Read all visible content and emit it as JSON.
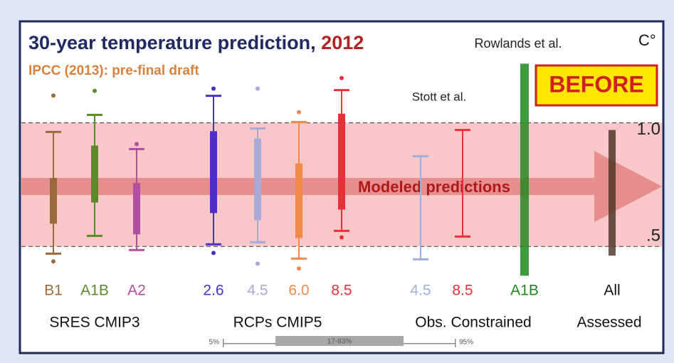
{
  "chart_data": {
    "type": "box",
    "title": "30-year temperature prediction,",
    "title_year": "2012",
    "subtitle": "IPCC (2013): pre-final draft",
    "unit": "C°",
    "badge": "BEFORE",
    "band_label": "Modeled predictions",
    "annotations": [
      "Rowlands et al.",
      "Stott et al."
    ],
    "ylim": [
      0.36,
      1.41
    ],
    "yticks": [
      {
        "value": 0.5,
        "label": ".5"
      },
      {
        "value": 1.0,
        "label": "1.0"
      }
    ],
    "grid": true,
    "categories": [
      "B1",
      "A1B",
      "A2",
      "2.6",
      "4.5",
      "6.0",
      "8.5",
      "4.5",
      "8.5",
      "A1B",
      "All"
    ],
    "groups": [
      "SRES CMIP3",
      "RCPs CMIP5",
      "Obs. Constrained",
      "Assessed"
    ],
    "boxes": [
      {
        "kind": "box",
        "color": "#9b6a3c",
        "low": 0.471,
        "q1": 0.592,
        "q3": 0.777,
        "high": 0.963,
        "outliers": [
          1.11,
          0.44
        ]
      },
      {
        "kind": "box",
        "color": "#5a8a2a",
        "low": 0.543,
        "q1": 0.678,
        "q3": 0.908,
        "high": 1.032,
        "outliers": [
          1.129
        ]
      },
      {
        "kind": "box",
        "color": "#b04fa0",
        "low": 0.486,
        "q1": 0.549,
        "q3": 0.756,
        "high": 0.894,
        "outliers": [
          0.914
        ]
      },
      {
        "kind": "box",
        "color": "#4b2fc7",
        "low": 0.509,
        "q1": 0.635,
        "q3": 0.966,
        "high": 1.109,
        "outliers": [
          1.138,
          0.474
        ]
      },
      {
        "kind": "box",
        "color": "#a9a9d8",
        "low": 0.517,
        "q1": 0.606,
        "q3": 0.937,
        "high": 0.977,
        "outliers": [
          1.138,
          0.431
        ]
      },
      {
        "kind": "box",
        "color": "#f0894a",
        "low": 0.451,
        "q1": 0.534,
        "q3": 0.836,
        "high": 1.003,
        "outliers": [
          1.043,
          0.411
        ]
      },
      {
        "kind": "box",
        "color": "#e8303a",
        "low": 0.563,
        "q1": 0.649,
        "q3": 1.037,
        "high": 1.132,
        "outliers": [
          1.181,
          0.537
        ]
      },
      {
        "kind": "range",
        "color": "#9fb0dc",
        "low": 0.448,
        "high": 0.865
      },
      {
        "kind": "range",
        "color": "#e8303a",
        "low": 0.54,
        "high": 0.971
      },
      {
        "kind": "bar",
        "color": "#1f8a1f",
        "low": 0.382,
        "high": 1.239
      },
      {
        "kind": "bar",
        "color": "#4a2f22",
        "low": 0.463,
        "high": 0.971
      }
    ],
    "legend": [
      "5%",
      "17-83%",
      "95%"
    ]
  }
}
